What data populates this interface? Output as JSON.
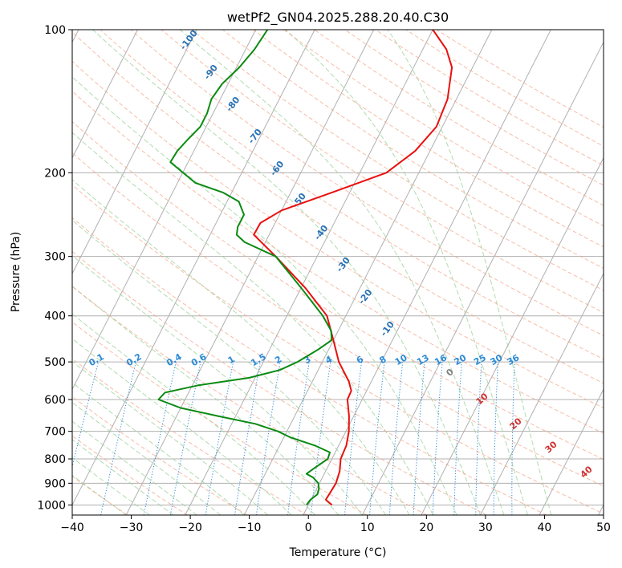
{
  "chart_data": {
    "type": "skew-t",
    "title": "wetPf2_GN04.2025.288.20.40.C30",
    "xlabel": "Temperature (°C)",
    "ylabel": "Pressure (hPa)",
    "xlim": [
      -40,
      50
    ],
    "ylim": [
      1050,
      100
    ],
    "x_ticks": [
      "−40",
      "−30",
      "−20",
      "−10",
      "0",
      "10",
      "20",
      "30",
      "40",
      "50"
    ],
    "y_ticks": [
      {
        "p": 100,
        "label": "100"
      },
      {
        "p": 200,
        "label": "200"
      },
      {
        "p": 300,
        "label": "300"
      },
      {
        "p": 400,
        "label": "400"
      },
      {
        "p": 500,
        "label": "500"
      },
      {
        "p": 600,
        "label": "600"
      },
      {
        "p": 700,
        "label": "700"
      },
      {
        "p": 800,
        "label": "800"
      },
      {
        "p": 900,
        "label": "900"
      },
      {
        "p": 1000,
        "label": "1000"
      }
    ],
    "dry_adiabat_labels": [
      "-100",
      "-90",
      "-80",
      "-70",
      "-60",
      "-50",
      "-40",
      "-30",
      "-20",
      "-10"
    ],
    "moist_adiabat_labels": [
      "0",
      "10",
      "20",
      "30",
      "40"
    ],
    "mixing_ratio_labels": [
      "0.1",
      "0.2",
      "0.4",
      "0.6",
      "1",
      "1.5",
      "2",
      "3",
      "4",
      "6",
      "8",
      "10",
      "13",
      "16",
      "20",
      "25",
      "30",
      "36"
    ],
    "series": [
      {
        "name": "temperature",
        "color": "#e8100e",
        "points": [
          {
            "p": 1000,
            "t": 4.0
          },
          {
            "p": 975,
            "t": 2.5
          },
          {
            "p": 950,
            "t": 2.6
          },
          {
            "p": 900,
            "t": 2.8
          },
          {
            "p": 850,
            "t": 2.4
          },
          {
            "p": 800,
            "t": 1.5
          },
          {
            "p": 750,
            "t": 1.3
          },
          {
            "p": 700,
            "t": 0.5
          },
          {
            "p": 650,
            "t": -0.8
          },
          {
            "p": 600,
            "t": -2.5
          },
          {
            "p": 575,
            "t": -2.6
          },
          {
            "p": 550,
            "t": -3.8
          },
          {
            "p": 500,
            "t": -7.2
          },
          {
            "p": 450,
            "t": -10.0
          },
          {
            "p": 400,
            "t": -13.2
          },
          {
            "p": 350,
            "t": -19.2
          },
          {
            "p": 300,
            "t": -27.0
          },
          {
            "p": 270,
            "t": -32.6
          },
          {
            "p": 255,
            "t": -32.5
          },
          {
            "p": 240,
            "t": -30.0
          },
          {
            "p": 220,
            "t": -23.0
          },
          {
            "p": 200,
            "t": -15.5
          },
          {
            "p": 180,
            "t": -12.5
          },
          {
            "p": 160,
            "t": -11.0
          },
          {
            "p": 140,
            "t": -11.5
          },
          {
            "p": 120,
            "t": -13.5
          },
          {
            "p": 110,
            "t": -16.0
          },
          {
            "p": 100,
            "t": -20.0
          }
        ]
      },
      {
        "name": "dewpoint",
        "color": "#0a8a12",
        "points": [
          {
            "p": 1000,
            "t": -0.3
          },
          {
            "p": 975,
            "t": -0.1
          },
          {
            "p": 950,
            "t": 0.6
          },
          {
            "p": 925,
            "t": 0.4
          },
          {
            "p": 900,
            "t": -0.2
          },
          {
            "p": 875,
            "t": -1.6
          },
          {
            "p": 860,
            "t": -3.0
          },
          {
            "p": 840,
            "t": -2.3
          },
          {
            "p": 800,
            "t": -0.7
          },
          {
            "p": 775,
            "t": -0.9
          },
          {
            "p": 750,
            "t": -4.0
          },
          {
            "p": 720,
            "t": -9.0
          },
          {
            "p": 700,
            "t": -11.5
          },
          {
            "p": 675,
            "t": -16.0
          },
          {
            "p": 650,
            "t": -23.0
          },
          {
            "p": 625,
            "t": -30.0
          },
          {
            "p": 600,
            "t": -34.5
          },
          {
            "p": 580,
            "t": -34.0
          },
          {
            "p": 560,
            "t": -29.0
          },
          {
            "p": 540,
            "t": -21.0
          },
          {
            "p": 520,
            "t": -16.5
          },
          {
            "p": 500,
            "t": -14.2
          },
          {
            "p": 470,
            "t": -11.7
          },
          {
            "p": 450,
            "t": -10.3
          },
          {
            "p": 430,
            "t": -11.2
          },
          {
            "p": 400,
            "t": -13.9
          },
          {
            "p": 350,
            "t": -19.9
          },
          {
            "p": 300,
            "t": -27.0
          },
          {
            "p": 280,
            "t": -33.5
          },
          {
            "p": 270,
            "t": -35.5
          },
          {
            "p": 260,
            "t": -36.0
          },
          {
            "p": 245,
            "t": -36.0
          },
          {
            "p": 230,
            "t": -38.0
          },
          {
            "p": 220,
            "t": -41.5
          },
          {
            "p": 210,
            "t": -47.0
          },
          {
            "p": 190,
            "t": -53.0
          },
          {
            "p": 180,
            "t": -52.8
          },
          {
            "p": 170,
            "t": -52.0
          },
          {
            "p": 160,
            "t": -51.0
          },
          {
            "p": 150,
            "t": -51.0
          },
          {
            "p": 140,
            "t": -51.5
          },
          {
            "p": 130,
            "t": -51.0
          },
          {
            "p": 120,
            "t": -49.5
          },
          {
            "p": 110,
            "t": -48.5
          },
          {
            "p": 100,
            "t": -48.0
          }
        ]
      }
    ]
  }
}
